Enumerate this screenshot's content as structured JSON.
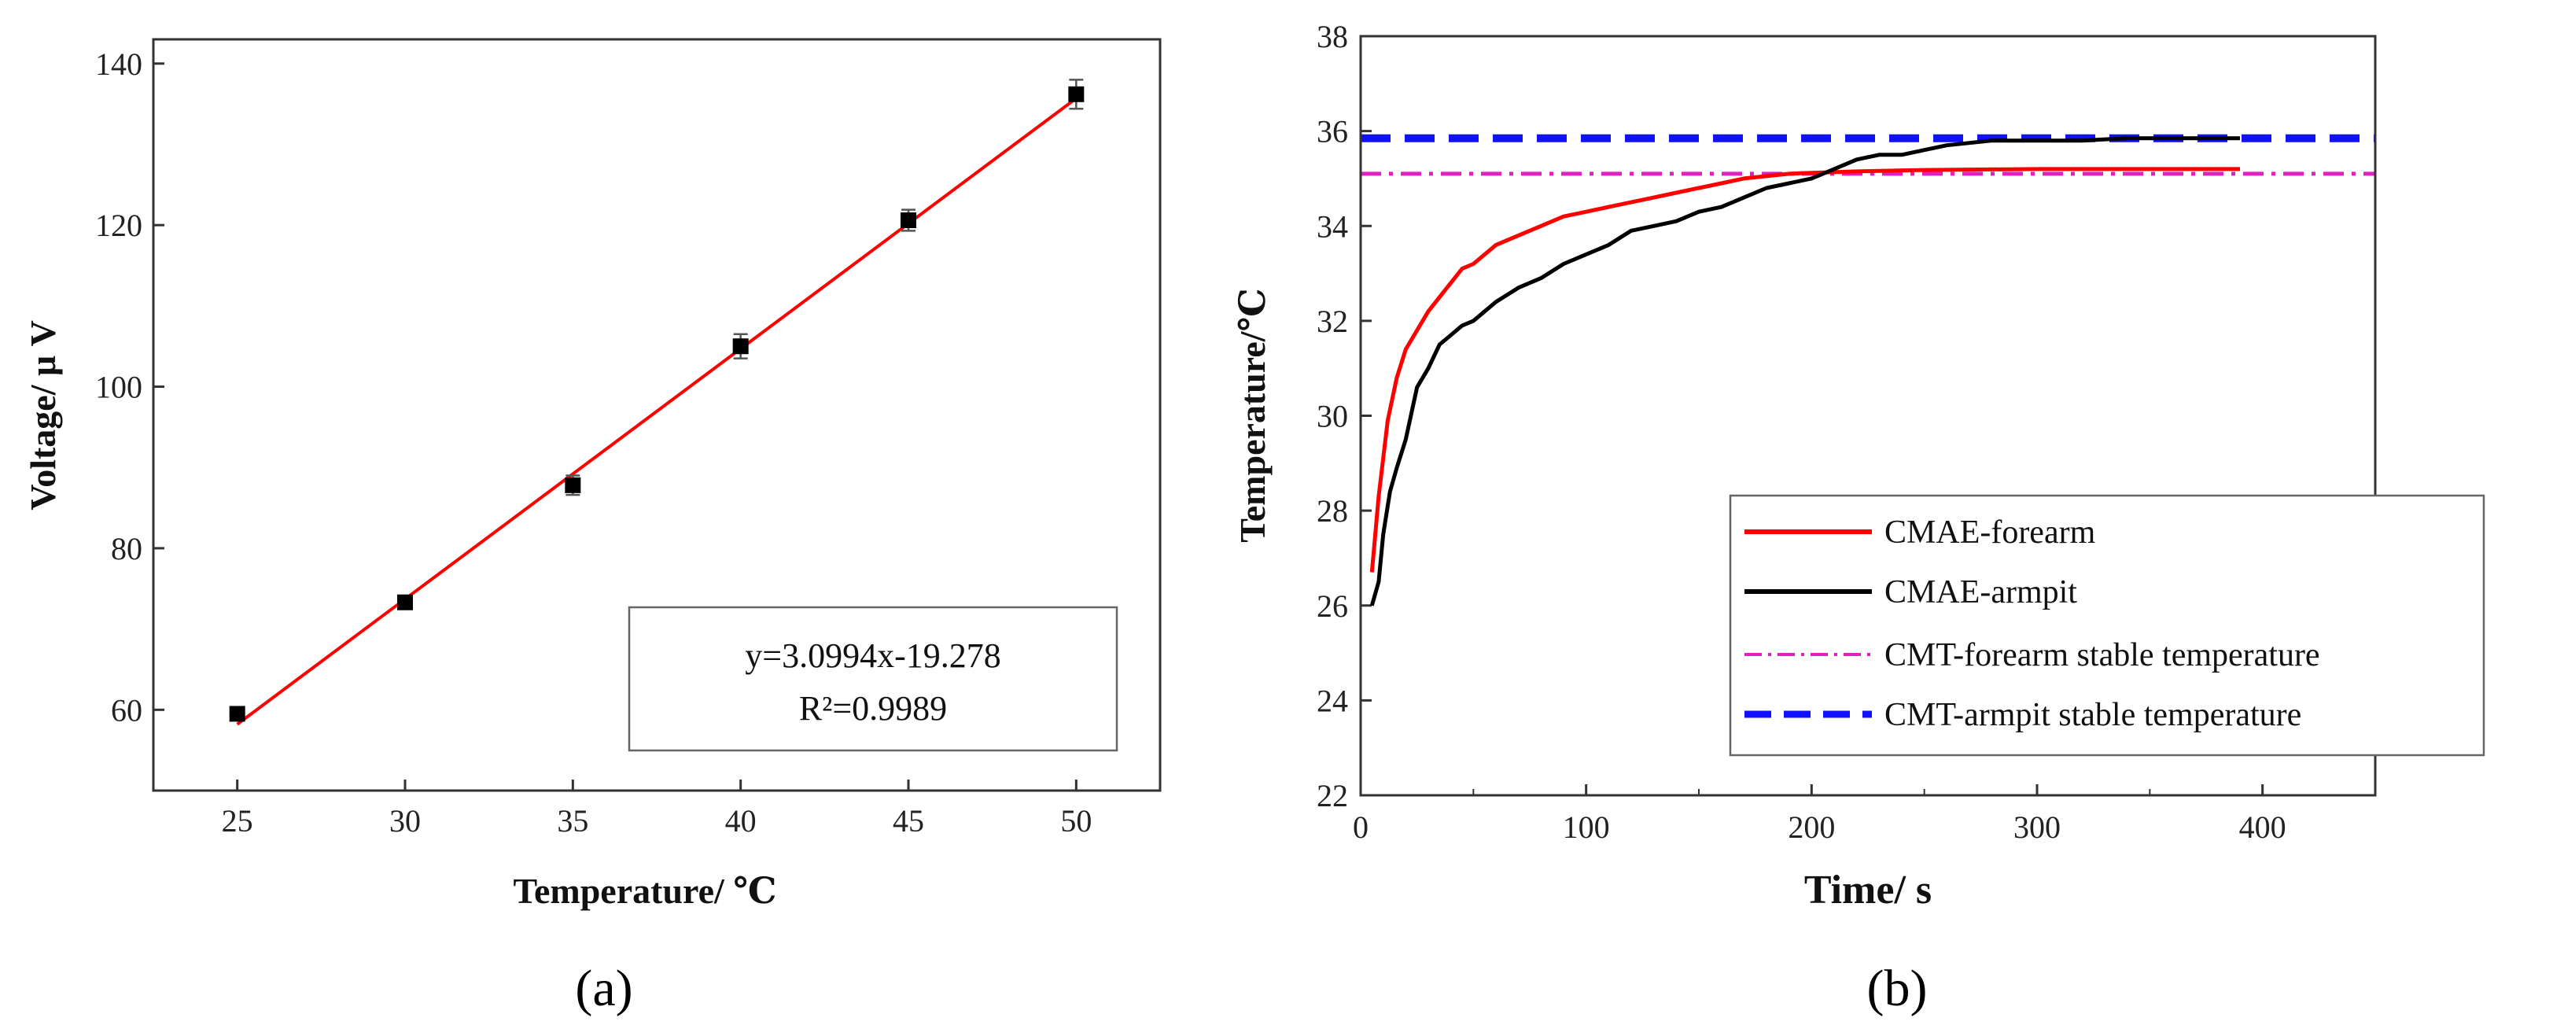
{
  "colors": {
    "fit": "#ff0000",
    "forearm": "#ff0000",
    "armpit": "#000000",
    "cmt_forearm": "#e020c0",
    "cmt_armpit": "#1010ff"
  },
  "panel_a_label": "(a)",
  "panel_b_label": "(b)",
  "equation": {
    "line1": "y=3.0994x-19.278",
    "line2": "R²=0.9989"
  },
  "chart_data": [
    {
      "type": "scatter",
      "panel": "(a)",
      "xlabel": "Temperature/ ℃",
      "ylabel": "Voltage/  μ V",
      "xlim": [
        22.5,
        52.5
      ],
      "ylim": [
        50,
        143
      ],
      "xticks": [
        25,
        30,
        35,
        40,
        45,
        50
      ],
      "yticks": [
        60,
        80,
        100,
        120,
        140
      ],
      "x": [
        25,
        30,
        35,
        40,
        45,
        50
      ],
      "y": [
        59.5,
        73.3,
        87.8,
        105.0,
        120.6,
        136.2
      ],
      "yerr": [
        0.6,
        0.6,
        1.2,
        1.5,
        1.3,
        1.8
      ],
      "fit": {
        "slope": 3.0994,
        "intercept": -19.278,
        "r2": 0.9989
      }
    },
    {
      "type": "line",
      "panel": "(b)",
      "xlabel": "Time/ s",
      "ylabel": "Temperature/℃",
      "xlim": [
        0,
        450
      ],
      "ylim": [
        22,
        38
      ],
      "xticks": [
        0,
        100,
        200,
        300,
        400
      ],
      "yticks": [
        22,
        24,
        26,
        28,
        30,
        32,
        34,
        36,
        38
      ],
      "legend_position": "bottom-right",
      "series": [
        {
          "name": "CMAE-forearm",
          "style": "solid",
          "x": [
            5,
            8,
            12,
            16,
            20,
            25,
            30,
            35,
            40,
            45,
            50,
            60,
            70,
            80,
            90,
            100,
            110,
            120,
            130,
            140,
            150,
            160,
            170,
            180,
            190,
            200,
            220,
            250,
            300,
            350,
            390
          ],
          "y": [
            26.7,
            28.3,
            29.9,
            30.8,
            31.4,
            31.8,
            32.2,
            32.5,
            32.8,
            33.1,
            33.2,
            33.6,
            33.8,
            34.0,
            34.2,
            34.3,
            34.4,
            34.5,
            34.6,
            34.7,
            34.8,
            34.9,
            35.0,
            35.05,
            35.1,
            35.12,
            35.15,
            35.18,
            35.2,
            35.2,
            35.2
          ]
        },
        {
          "name": "CMAE-armpit",
          "style": "solid",
          "x": [
            5,
            8,
            10,
            13,
            16,
            20,
            25,
            30,
            35,
            40,
            45,
            50,
            60,
            70,
            80,
            90,
            100,
            110,
            120,
            130,
            140,
            150,
            160,
            170,
            180,
            190,
            200,
            210,
            220,
            230,
            240,
            250,
            260,
            270,
            280,
            290,
            300,
            320,
            340,
            360,
            380,
            390
          ],
          "y": [
            26.0,
            26.5,
            27.5,
            28.4,
            28.9,
            29.5,
            30.6,
            31.0,
            31.5,
            31.7,
            31.9,
            32.0,
            32.4,
            32.7,
            32.9,
            33.2,
            33.4,
            33.6,
            33.9,
            34.0,
            34.1,
            34.3,
            34.4,
            34.6,
            34.8,
            34.9,
            35.0,
            35.2,
            35.4,
            35.5,
            35.5,
            35.6,
            35.7,
            35.75,
            35.8,
            35.8,
            35.8,
            35.8,
            35.85,
            35.85,
            35.85,
            35.85
          ]
        },
        {
          "name": "CMT-forearm stable temperature",
          "style": "dashdot",
          "x": [
            0,
            450
          ],
          "y": [
            35.1,
            35.1
          ]
        },
        {
          "name": "CMT-armpit stable temperature",
          "style": "dashed",
          "x": [
            0,
            450
          ],
          "y": [
            35.85,
            35.85
          ]
        }
      ]
    }
  ]
}
